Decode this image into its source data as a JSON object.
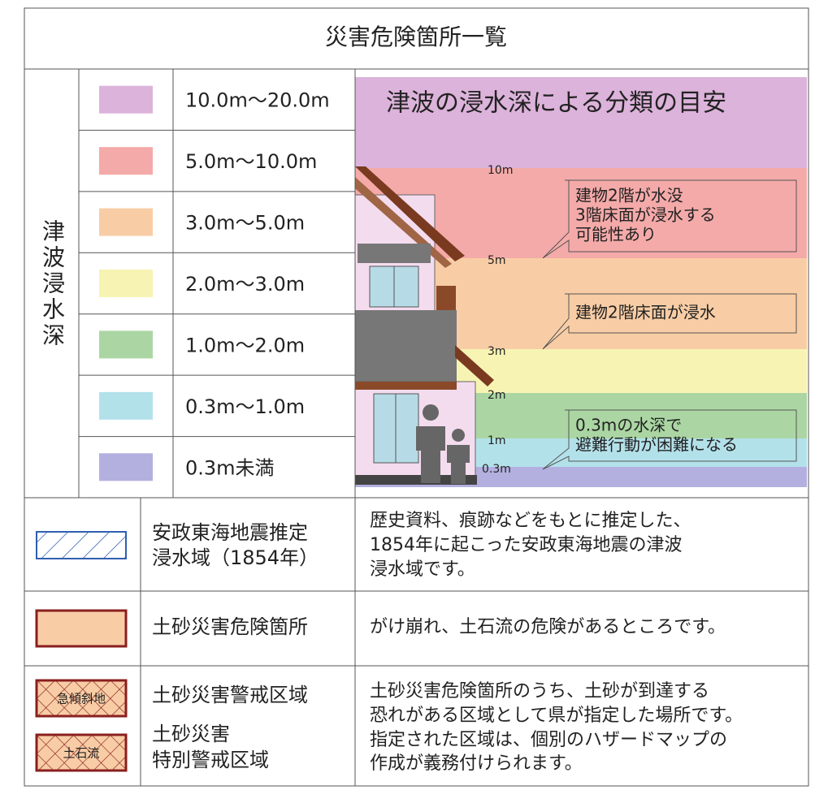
{
  "title": "災害危険箇所一覧",
  "tsunami": {
    "label": "津波浸水深",
    "rows": [
      {
        "range": "10.0m〜20.0m",
        "color": "#dcb3da"
      },
      {
        "range": "5.0m〜10.0m",
        "color": "#f4aaa9"
      },
      {
        "range": "3.0m〜5.0m",
        "color": "#f8cda5"
      },
      {
        "range": "2.0m〜3.0m",
        "color": "#f7f4b3"
      },
      {
        "range": "1.0m〜2.0m",
        "color": "#abd6a3"
      },
      {
        "range": "0.3m〜1.0m",
        "color": "#b3e1ea"
      },
      {
        "range": "0.3m未満",
        "color": "#b3b0e0"
      }
    ],
    "heading": "津波の浸水深による分類の目安",
    "levels": [
      "10m",
      "5m",
      "3m",
      "2m",
      "1m",
      "0.3m"
    ],
    "notes": [
      [
        "建物2階が水没",
        "3階床面が浸水する",
        "可能性あり"
      ],
      [
        "建物2階床面が浸水"
      ],
      [
        "0.3mの水深で",
        "避難行動が困難になる"
      ]
    ]
  },
  "legend": [
    {
      "label_lines": [
        "安政東海地震推定",
        "浸水域（1854年）"
      ],
      "description": [
        "歴史資料、痕跡などをもとに推定した、",
        "1854年に起こった安政東海地震の津波",
        "浸水域です。"
      ]
    },
    {
      "label_lines": [
        "土砂災害危険箇所"
      ],
      "description": [
        "がけ崩れ、土石流の危険があるところです。"
      ]
    },
    {
      "swatches": [
        "急傾斜地",
        "土石流"
      ],
      "label_lines": [
        "土砂災害警戒区域",
        "土砂災害",
        "特別警戒区域"
      ],
      "description": [
        "土砂災害危険箇所のうち、土砂が到達する",
        "恐れがある区域として県が指定した場所です。",
        "指定された区域は、個別のハザードマップの",
        "作成が義務付けられます。"
      ]
    }
  ]
}
